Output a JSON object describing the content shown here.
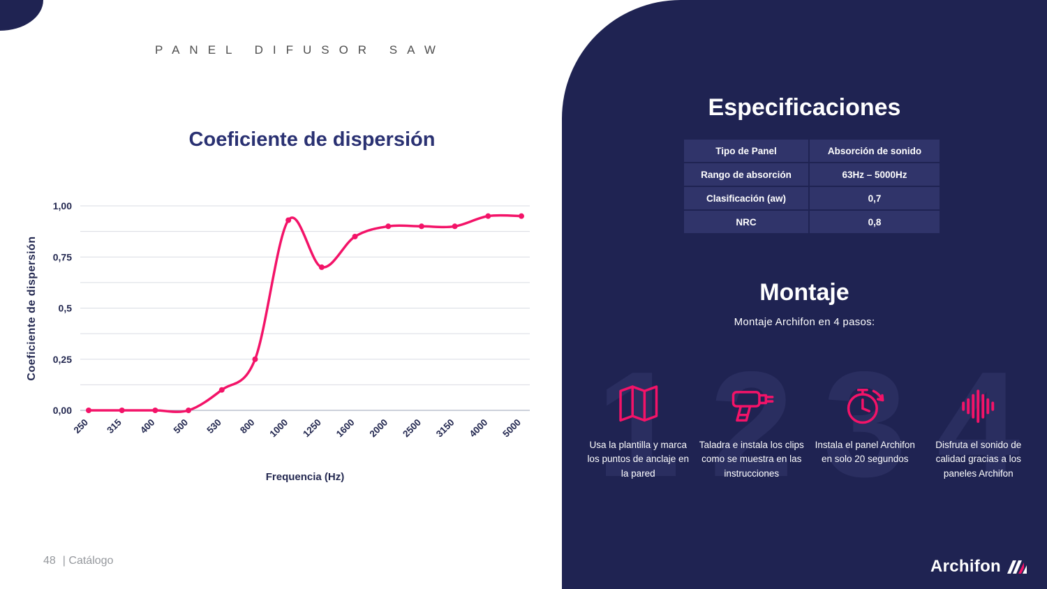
{
  "page": {
    "kicker": "PANEL DIFUSOR SAW",
    "footer": {
      "page_number": "48",
      "catalog_label": "| Catálogo"
    }
  },
  "colors": {
    "navy": "#1F2352",
    "navy_cell": "#30346A",
    "pink": "#F31368",
    "title_navy": "#2A3172"
  },
  "chart_data": {
    "type": "line",
    "title": "Coeficiente de dispersión",
    "xlabel": "Frequencia (Hz)",
    "ylabel": "Coeficiente de dispersión",
    "categories": [
      "250",
      "315",
      "400",
      "500",
      "530",
      "800",
      "1000",
      "1250",
      "1600",
      "2000",
      "2500",
      "3150",
      "4000",
      "5000"
    ],
    "values": [
      0.0,
      0.0,
      0.0,
      0.0,
      0.1,
      0.25,
      0.93,
      0.7,
      0.85,
      0.9,
      0.9,
      0.9,
      0.95,
      0.95
    ],
    "ylim": [
      0,
      1
    ],
    "yticks": [
      {
        "v": 0,
        "label": "0,00"
      },
      {
        "v": 0.25,
        "label": "0,25"
      },
      {
        "v": 0.5,
        "label": "0,5"
      },
      {
        "v": 0.75,
        "label": "0,75"
      },
      {
        "v": 1,
        "label": "1,00"
      }
    ],
    "grid": true,
    "minor_grid_step": 0.125,
    "legend": "none",
    "line_color": "#F31368"
  },
  "specs": {
    "title": "Especificaciones",
    "rows": [
      {
        "label": "Tipo de Panel",
        "value": "Absorción de sonido"
      },
      {
        "label": "Rango de absorción",
        "value": "63Hz – 5000Hz"
      },
      {
        "label": "Clasificación  (aw)",
        "value": "0,7"
      },
      {
        "label": "NRC",
        "value": "0,8"
      }
    ]
  },
  "montaje": {
    "title": "Montaje",
    "subtitle": "Montaje Archifon en 4 pasos:",
    "steps": [
      {
        "number": "1",
        "icon": "map-template-icon",
        "text": "Usa la plantilla y marca los puntos de anclaje en la pared"
      },
      {
        "number": "2",
        "icon": "drill-icon",
        "text": "Taladra e instala los clips como se muestra en las instrucciones"
      },
      {
        "number": "3",
        "icon": "timer-icon",
        "text": "Instala el panel Archifon en solo 20 segundos"
      },
      {
        "number": "4",
        "icon": "sound-wave-icon",
        "text": "Disfruta el sonido de calidad gracias a los paneles Archifon"
      }
    ]
  },
  "brand": {
    "logo_text": "Archifon"
  }
}
